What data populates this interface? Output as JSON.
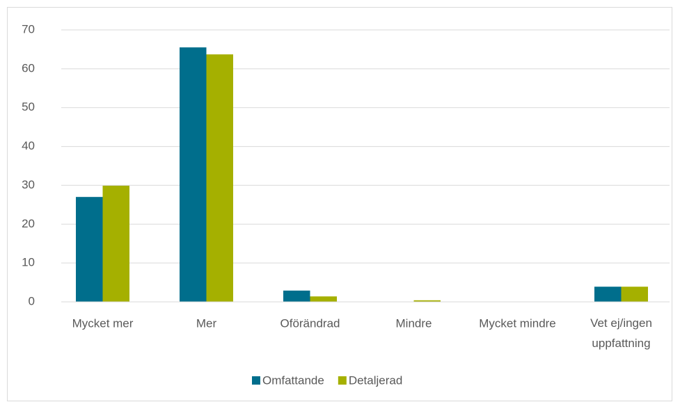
{
  "chart_data": {
    "type": "bar",
    "categories": [
      "Mycket mer",
      "Mer",
      "Oförändrad",
      "Mindre",
      "Mycket mindre",
      "Vet ej/ingen uppfattning"
    ],
    "series": [
      {
        "name": "Omfattande",
        "color": "#006e8c",
        "values": [
          27,
          65.5,
          2.9,
          0,
          0,
          3.9
        ]
      },
      {
        "name": "Detaljerad",
        "color": "#a5b000",
        "values": [
          29.9,
          63.7,
          1.4,
          0.4,
          0,
          3.9
        ]
      }
    ],
    "ylim": [
      0,
      70
    ],
    "yticks": [
      0,
      10,
      20,
      30,
      40,
      50,
      60,
      70
    ],
    "grid": true,
    "legend": "bottom"
  }
}
